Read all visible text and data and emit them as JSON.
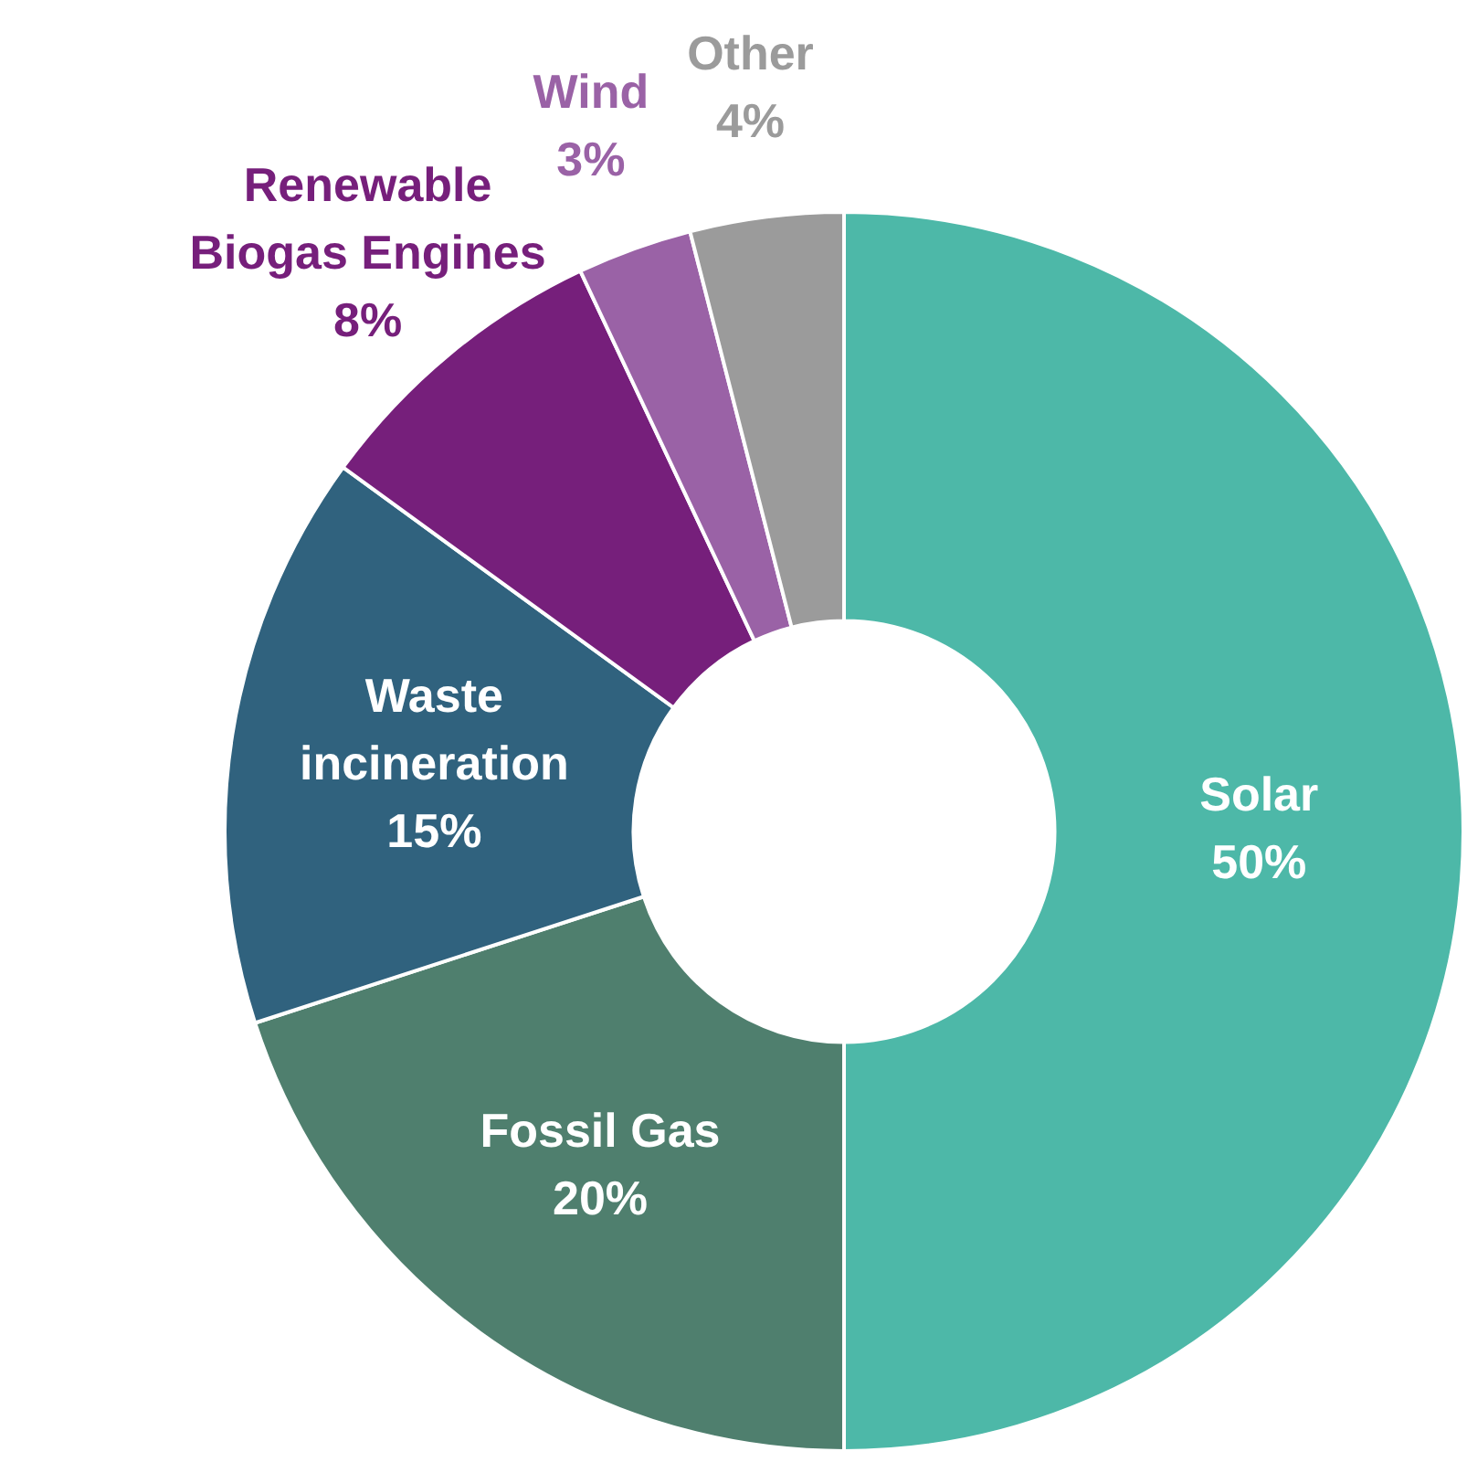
{
  "chart_data": {
    "type": "donut",
    "categories": [
      "Solar",
      "Fossil Gas",
      "Waste incineration",
      "Renewable Biogas Engines",
      "Wind",
      "Other"
    ],
    "values": [
      50,
      20,
      15,
      8,
      3,
      4
    ],
    "colors": [
      "#4db8a8",
      "#4f7f6e",
      "#30627e",
      "#761f7b",
      "#9a62a6",
      "#9b9b9b"
    ],
    "value_labels": [
      "50%",
      "20%",
      "15%",
      "8%",
      "3%",
      "4%"
    ],
    "legend": false
  }
}
